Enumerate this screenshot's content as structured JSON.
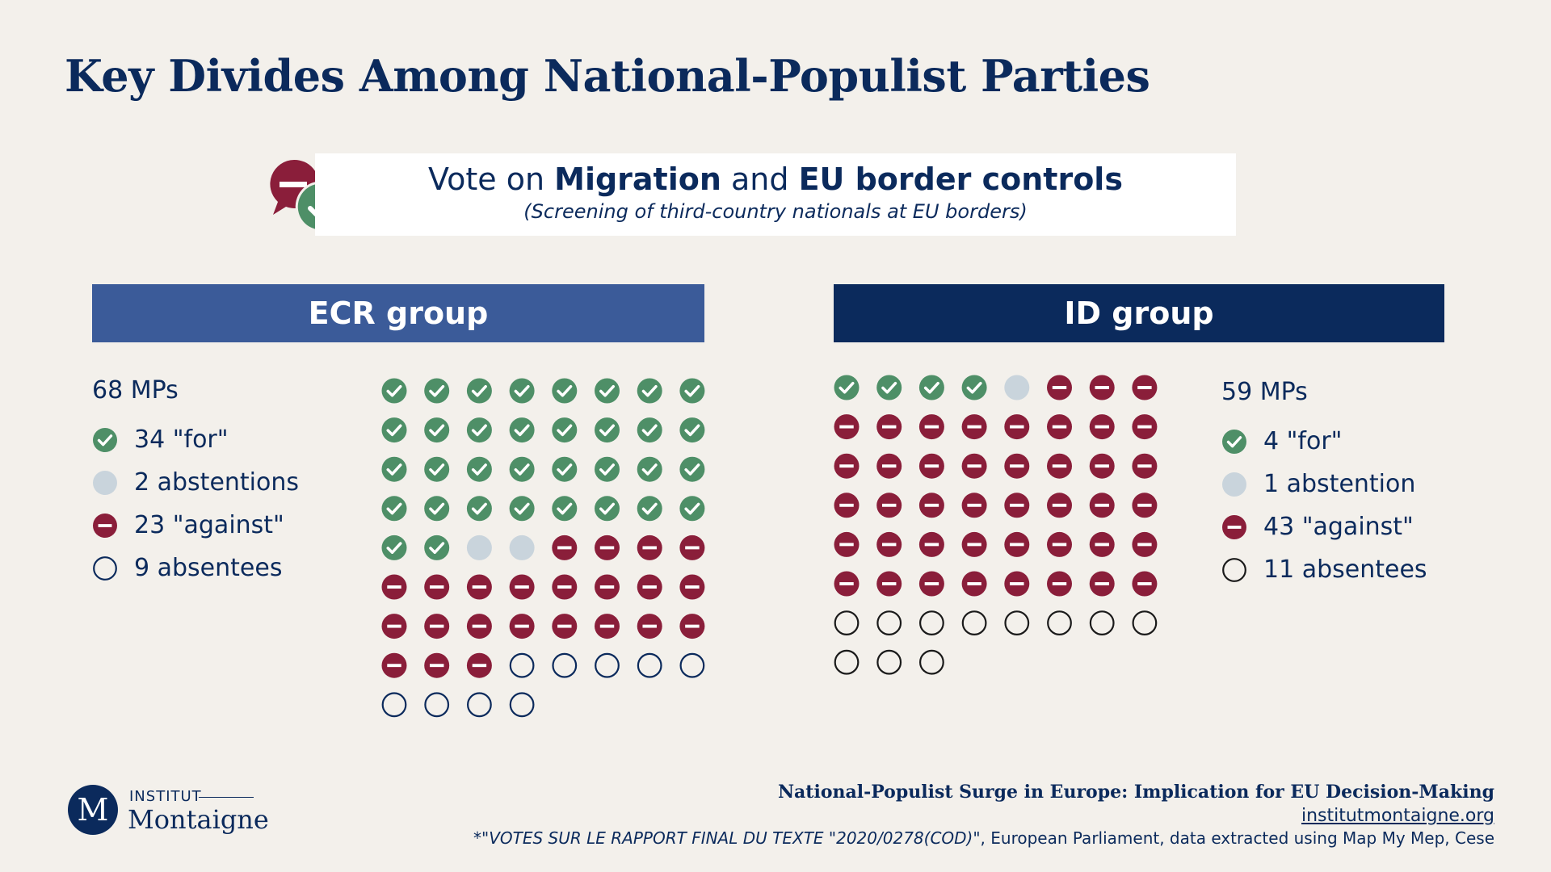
{
  "title": "Key Divides Among National-Populist Parties",
  "vote": {
    "prefix": "Vote on ",
    "topic1": "Migration",
    "middle": " and ",
    "topic2": "EU border controls",
    "subtitle": "(Screening of third-country nationals at EU borders)"
  },
  "colors": {
    "for": "#4e8f67",
    "abstention": "#c9d4dc",
    "against": "#8a1e3a",
    "absentee_stroke": "#0b2a5c",
    "ecr_header": "#3b5b99",
    "id_header": "#0b2a5c"
  },
  "icons": {
    "for": "check-icon",
    "abstention": "abstention-dot-icon",
    "against": "minus-icon",
    "absentee": "empty-circle-icon"
  },
  "chart_data": [
    {
      "type": "table",
      "group": "ECR group",
      "total_label": "68 MPs",
      "total": 68,
      "counts": {
        "for": 34,
        "abstention": 2,
        "against": 23,
        "absentee": 9
      },
      "legend": [
        "34 \"for\"",
        "2 abstentions",
        "23 \"against\"",
        "9 absentees"
      ],
      "absentee_stroke": "#0b2a5c"
    },
    {
      "type": "table",
      "group": "ID group",
      "total_label": "59 MPs",
      "total": 59,
      "counts": {
        "for": 4,
        "abstention": 1,
        "against": 43,
        "absentee": 11
      },
      "legend": [
        "4 \"for\"",
        "1 abstention",
        "43 \"against\"",
        "11 absentees"
      ],
      "absentee_stroke": "#1a1a1a"
    }
  ],
  "footer": {
    "report_title": "National-Populist Surge in Europe: Implication for EU Decision-Making",
    "url": "institutmontaigne.org",
    "source_italic": "*\"VOTES SUR LE RAPPORT FINAL DU TEXTE \"2020/0278(COD)",
    "source_rest": "\", European Parliament, data extracted using Map My Mep, Cese"
  },
  "logo": {
    "letter": "M",
    "institut": "INSTITUT",
    "name": "Montaigne"
  }
}
